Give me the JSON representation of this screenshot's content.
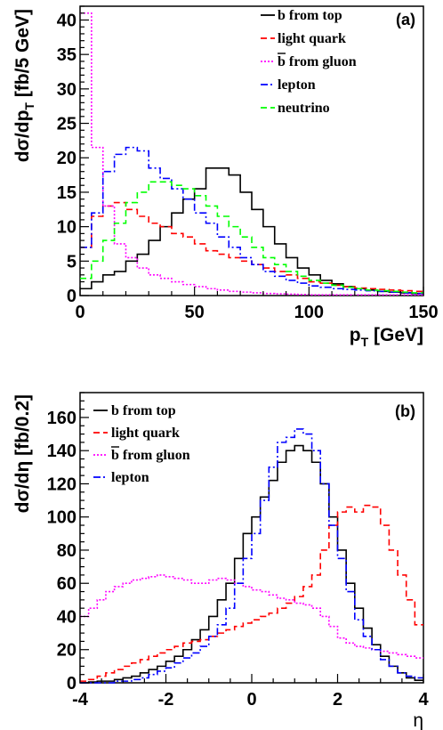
{
  "chart_data": [
    {
      "type": "line",
      "panel_label": "(a)",
      "xlabel": "p_T [GeV]",
      "xlabel_main": "p",
      "xlabel_sub": "T",
      "xlabel_unit": " [GeV]",
      "ylabel": "dσ/dp_T [fb/5 GeV]",
      "ylabel_main": "dσ/dp",
      "ylabel_sub": "T",
      "ylabel_unit": " [fb/5 GeV]",
      "xlim": [
        0,
        150
      ],
      "ylim": [
        0,
        42
      ],
      "xticks": [
        0,
        50,
        100,
        150
      ],
      "yticks": [
        0,
        5,
        10,
        15,
        20,
        25,
        30,
        35,
        40
      ],
      "bin_width": 5,
      "grid": false,
      "legend_position": "top-right",
      "series": [
        {
          "name": "b from top",
          "color": "#000000",
          "dash": "solid",
          "values": [
            1.0,
            2.0,
            3.0,
            3.5,
            5.0,
            6.0,
            8.0,
            10.0,
            12.0,
            14.0,
            15.5,
            18.5,
            18.5,
            17.5,
            15.0,
            12.5,
            10.0,
            7.5,
            5.5,
            4.0,
            3.0,
            2.2,
            1.7,
            1.3,
            1.0,
            0.8,
            0.6,
            0.5,
            0.4,
            0.3
          ]
        },
        {
          "name": "light quark",
          "color": "#ff0000",
          "dash": "dashed",
          "values": [
            7.0,
            11.5,
            13.0,
            13.5,
            12.5,
            11.5,
            10.5,
            10.0,
            9.0,
            8.5,
            7.5,
            6.5,
            6.0,
            5.5,
            5.0,
            4.5,
            4.0,
            3.5,
            3.0,
            2.5,
            2.0,
            1.8,
            1.5,
            1.3,
            1.1,
            1.0,
            0.9,
            0.8,
            0.7,
            0.6
          ]
        },
        {
          "name": "b from gluon",
          "color": "#ff00ff",
          "dash": "dotted",
          "values": [
            41.0,
            21.5,
            13.0,
            7.5,
            5.5,
            4.0,
            3.0,
            2.5,
            2.0,
            1.6,
            1.3,
            1.0,
            0.8,
            0.6,
            0.5,
            0.4,
            0.3,
            0.25,
            0.2,
            0.15,
            0.1,
            0.1,
            0.1,
            0.1,
            0.1,
            0.1,
            0.1,
            0.1,
            0.1,
            0.1
          ]
        },
        {
          "name": "lepton",
          "color": "#0000ff",
          "dash": "dashdot",
          "values": [
            7.0,
            12.0,
            18.0,
            20.5,
            21.5,
            21.0,
            18.5,
            17.0,
            15.5,
            14.0,
            12.0,
            10.5,
            8.5,
            7.0,
            5.5,
            4.5,
            3.5,
            2.8,
            2.2,
            1.8,
            1.4,
            1.2,
            1.0,
            0.9,
            0.8,
            0.7,
            0.6,
            0.5,
            0.4,
            0.3
          ]
        },
        {
          "name": "neutrino",
          "color": "#00ff00",
          "dash": "dashed",
          "values": [
            2.5,
            5.0,
            8.0,
            10.5,
            13.5,
            15.0,
            16.5,
            16.5,
            16.0,
            15.5,
            14.5,
            13.0,
            11.5,
            10.0,
            8.5,
            7.0,
            5.5,
            4.5,
            3.5,
            2.8,
            2.2,
            1.8,
            1.5,
            1.2,
            1.0,
            0.8,
            0.7,
            0.6,
            0.5,
            0.4
          ]
        }
      ]
    },
    {
      "type": "line",
      "panel_label": "(b)",
      "xlabel": "η",
      "ylabel": "dσ/dη [fb/0.2]",
      "xlim": [
        -4,
        4
      ],
      "ylim": [
        0,
        175
      ],
      "xticks": [
        -4,
        -2,
        0,
        2,
        4
      ],
      "yticks": [
        0,
        20,
        40,
        60,
        80,
        100,
        120,
        140,
        160
      ],
      "bin_width": 0.2,
      "grid": false,
      "legend_position": "top-left",
      "series": [
        {
          "name": "b from top",
          "color": "#000000",
          "dash": "solid",
          "values": [
            0,
            0.5,
            1,
            1,
            2,
            3,
            4,
            6,
            8,
            10,
            13,
            16,
            20,
            26,
            32,
            40,
            50,
            60,
            75,
            90,
            100,
            112,
            122,
            133,
            140,
            143,
            140,
            133,
            120,
            100,
            80,
            60,
            45,
            33,
            23,
            16,
            10,
            6,
            3,
            1.5
          ]
        },
        {
          "name": "light quark",
          "color": "#ff0000",
          "dash": "dashed",
          "values": [
            1,
            2,
            4,
            6,
            8,
            10,
            12,
            14,
            16,
            18,
            20,
            22,
            24,
            25,
            26,
            28,
            30,
            32,
            34,
            36,
            38,
            40,
            42,
            45,
            48,
            52,
            58,
            65,
            80,
            95,
            103,
            106,
            103,
            107,
            106,
            95,
            80,
            65,
            50,
            35
          ]
        },
        {
          "name": "b from gluon",
          "color": "#ff00ff",
          "dash": "dotted",
          "values": [
            40,
            45,
            50,
            55,
            58,
            60,
            62,
            63,
            64,
            65,
            64,
            63,
            62,
            60,
            60,
            62,
            63,
            62,
            60,
            58,
            56,
            55,
            53,
            51,
            50,
            48,
            47,
            45,
            40,
            34,
            27,
            24,
            22,
            21,
            20,
            19,
            18,
            17,
            16,
            15
          ]
        },
        {
          "name": "lepton",
          "color": "#0000ff",
          "dash": "dashdot",
          "values": [
            0,
            0,
            0,
            0,
            1,
            1,
            2,
            3,
            5,
            7,
            9,
            12,
            15,
            18,
            22,
            28,
            35,
            45,
            60,
            75,
            90,
            110,
            130,
            145,
            148,
            153,
            150,
            140,
            120,
            95,
            75,
            55,
            38,
            28,
            20,
            14,
            10,
            6,
            4,
            3
          ]
        }
      ]
    }
  ]
}
